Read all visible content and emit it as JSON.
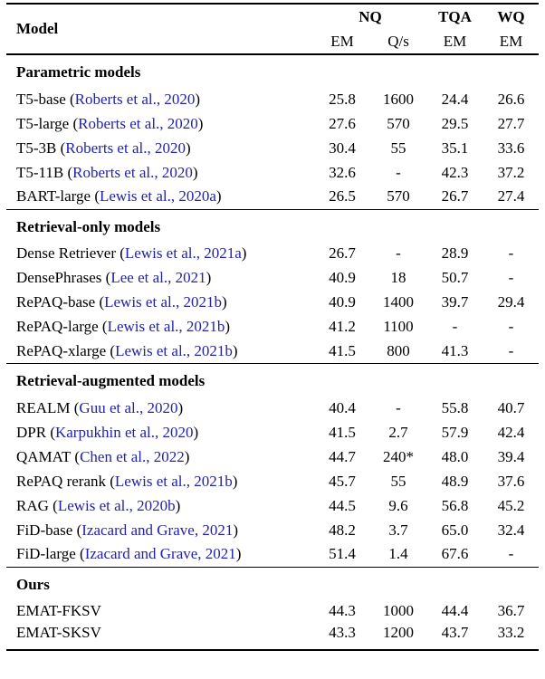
{
  "colors": {
    "citation_blue": "#2222aa",
    "text": "#000000",
    "background": "#ffffff"
  },
  "table": {
    "header": {
      "model": "Model",
      "group_nq": "NQ",
      "group_tqa": "TQA",
      "group_wq": "WQ",
      "nq_sub_em": "EM",
      "nq_sub_qs": "Q/s",
      "tqa_sub_em": "EM",
      "wq_sub_em": "EM"
    },
    "sections": [
      {
        "title": "Parametric models",
        "rows": [
          {
            "model": "T5-base",
            "cite": "Roberts et al., 2020",
            "nq_em": "25.8",
            "nq_qs": "1600",
            "tqa_em": "24.4",
            "wq_em": "26.6"
          },
          {
            "model": "T5-large",
            "cite": "Roberts et al., 2020",
            "nq_em": "27.6",
            "nq_qs": "570",
            "tqa_em": "29.5",
            "wq_em": "27.7"
          },
          {
            "model": "T5-3B",
            "cite": "Roberts et al., 2020",
            "nq_em": "30.4",
            "nq_qs": "55",
            "tqa_em": "35.1",
            "wq_em": "33.6"
          },
          {
            "model": "T5-11B",
            "cite": "Roberts et al., 2020",
            "nq_em": "32.6",
            "nq_qs": "-",
            "tqa_em": "42.3",
            "wq_em": "37.2"
          },
          {
            "model": "BART-large",
            "cite": "Lewis et al., 2020a",
            "nq_em": "26.5",
            "nq_qs": "570",
            "tqa_em": "26.7",
            "wq_em": "27.4"
          }
        ]
      },
      {
        "title": "Retrieval-only models",
        "rows": [
          {
            "model": "Dense Retriever",
            "cite": "Lewis et al., 2021a",
            "nq_em": "26.7",
            "nq_qs": "-",
            "tqa_em": "28.9",
            "wq_em": "-"
          },
          {
            "model": "DensePhrases",
            "cite": "Lee et al., 2021",
            "nq_em": "40.9",
            "nq_qs": "18",
            "tqa_em": "50.7",
            "wq_em": "-"
          },
          {
            "model": "RePAQ-base",
            "cite": "Lewis et al., 2021b",
            "nq_em": "40.9",
            "nq_qs": "1400",
            "tqa_em": "39.7",
            "wq_em": "29.4"
          },
          {
            "model": "RePAQ-large",
            "cite": "Lewis et al., 2021b",
            "nq_em": "41.2",
            "nq_qs": "1100",
            "tqa_em": "-",
            "wq_em": "-"
          },
          {
            "model": "RePAQ-xlarge",
            "cite": "Lewis et al., 2021b",
            "nq_em": "41.5",
            "nq_qs": "800",
            "tqa_em": "41.3",
            "wq_em": "-"
          }
        ]
      },
      {
        "title": "Retrieval-augmented models",
        "rows": [
          {
            "model": "REALM",
            "cite": "Guu et al., 2020",
            "nq_em": "40.4",
            "nq_qs": "-",
            "tqa_em": "55.8",
            "wq_em": "40.7"
          },
          {
            "model": "DPR",
            "cite": "Karpukhin et al., 2020",
            "nq_em": "41.5",
            "nq_qs": "2.7",
            "tqa_em": "57.9",
            "wq_em": "42.4"
          },
          {
            "model": "QAMAT",
            "cite": "Chen et al., 2022",
            "nq_em": "44.7",
            "nq_qs": "240*",
            "tqa_em": "48.0",
            "wq_em": "39.4"
          },
          {
            "model": "RePAQ rerank",
            "cite": "Lewis et al., 2021b",
            "nq_em": "45.7",
            "nq_qs": "55",
            "tqa_em": "48.9",
            "wq_em": "37.6"
          },
          {
            "model": "RAG",
            "cite": "Lewis et al., 2020b",
            "nq_em": "44.5",
            "nq_qs": "9.6",
            "tqa_em": "56.8",
            "wq_em": "45.2"
          },
          {
            "model": "FiD-base",
            "cite": "Izacard and Grave, 2021",
            "nq_em": "48.2",
            "nq_qs": "3.7",
            "tqa_em": "65.0",
            "wq_em": "32.4"
          },
          {
            "model": "FiD-large",
            "cite": "Izacard and Grave, 2021",
            "nq_em": "51.4",
            "nq_qs": "1.4",
            "tqa_em": "67.6",
            "wq_em": "-"
          }
        ]
      },
      {
        "title": "Ours",
        "rows": [
          {
            "model": "EMAT-FKSV",
            "cite": "",
            "nq_em": "44.3",
            "nq_qs": "1000",
            "tqa_em": "44.4",
            "wq_em": "36.7"
          },
          {
            "model": "EMAT-SKSV",
            "cite": "",
            "nq_em": "43.3",
            "nq_qs": "1200",
            "tqa_em": "43.7",
            "wq_em": "33.2"
          }
        ]
      }
    ]
  }
}
